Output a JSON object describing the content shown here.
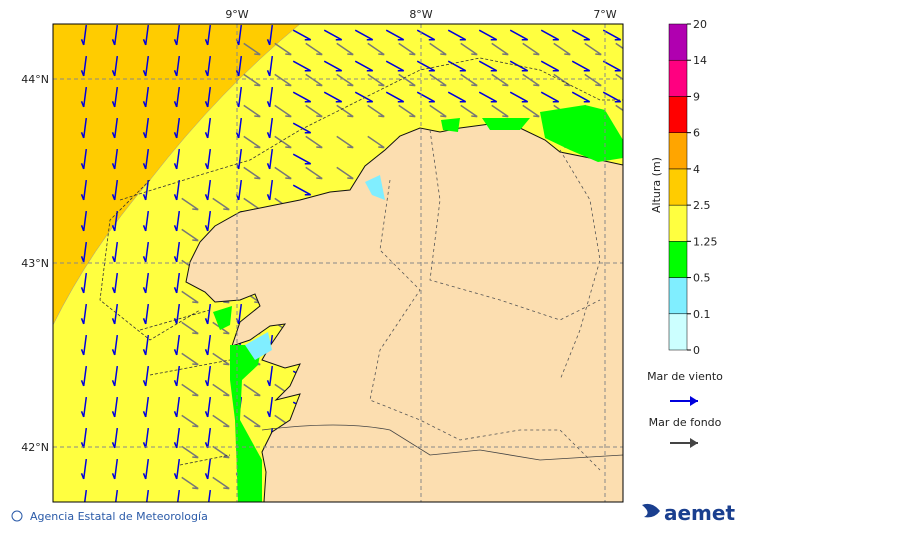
{
  "map": {
    "lon_labels": [
      "9°W",
      "8°W",
      "7°W"
    ],
    "lat_labels": [
      "44°N",
      "43°N",
      "42°N"
    ]
  },
  "colorbar": {
    "label": "Altura (m)",
    "levels": [
      0,
      0.1,
      0.5,
      1.25,
      2.5,
      4,
      6,
      9,
      14,
      20
    ],
    "colors": [
      "#ccffff",
      "#80eeff",
      "#00ff00",
      "#ffff40",
      "#ffcc00",
      "#ffa500",
      "#ff0000",
      "#ff0080",
      "#b000b0"
    ]
  },
  "legend": {
    "wind": "Mar de viento",
    "swell": "Mar de fondo"
  },
  "footer": {
    "credit": "Agencia Estatal de Meteorología",
    "logo": "aemet"
  }
}
